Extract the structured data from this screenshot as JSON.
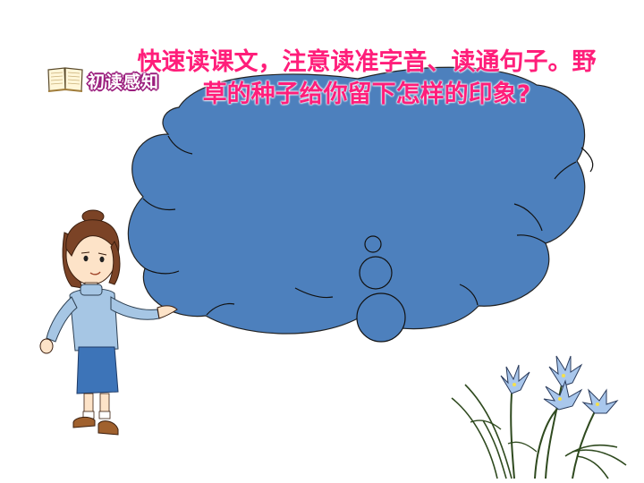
{
  "section": {
    "label": "初读感知",
    "icon": "open-book-icon"
  },
  "prompt": {
    "text": "快速读课文，注意读准字音、读通句子。野草的种子给你留下怎样的印象?"
  },
  "colors": {
    "cloud": "#4d80bd",
    "prompt_text": "#ff1e7a",
    "label_outline": "#9b1f7e",
    "girl_sweater": "#a6c6e4",
    "girl_skirt": "#3d74b8",
    "girl_hair": "#7b4326",
    "flower_petals": "#a9c7ec",
    "flower_stems": "#2f4a1f"
  }
}
